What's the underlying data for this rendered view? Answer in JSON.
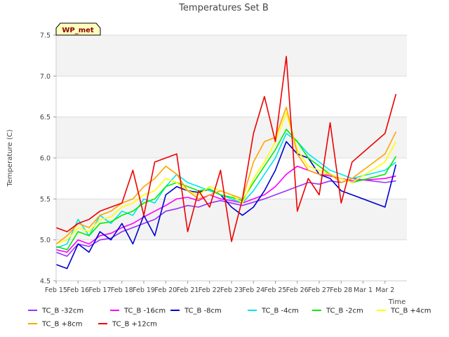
{
  "chart_data": {
    "type": "line",
    "title": "Temperatures Set B",
    "xlabel": "Time",
    "ylabel": "Temperature (C)",
    "ylim": [
      4.5,
      7.5
    ],
    "xlim": [
      "2024-02-15",
      "2024-03-02"
    ],
    "x_ticks": [
      "Feb 15",
      "Feb 16",
      "Feb 17",
      "Feb 18",
      "Feb 19",
      "Feb 20",
      "Feb 21",
      "Feb 22",
      "Feb 23",
      "Feb 24",
      "Feb 25",
      "Feb 26",
      "Feb 27",
      "Feb 28",
      "Mar 1",
      "Mar 2"
    ],
    "y_ticks": [
      "4.5",
      "5.0",
      "5.5",
      "6.0",
      "6.5",
      "7.0",
      "7.5"
    ],
    "grid": "horizontal bands",
    "legend_position": "bottom",
    "annotation": "WP_met",
    "x": [
      "2024-02-15",
      "2024-02-15T12:00",
      "2024-02-16",
      "2024-02-16T12:00",
      "2024-02-17",
      "2024-02-17T12:00",
      "2024-02-18",
      "2024-02-18T12:00",
      "2024-02-19",
      "2024-02-19T12:00",
      "2024-02-20",
      "2024-02-20T12:00",
      "2024-02-21",
      "2024-02-21T12:00",
      "2024-02-22",
      "2024-02-22T12:00",
      "2024-02-23",
      "2024-02-23T12:00",
      "2024-02-24",
      "2024-02-24T12:00",
      "2024-02-25",
      "2024-02-25T12:00",
      "2024-02-26",
      "2024-02-26T12:00",
      "2024-02-27",
      "2024-02-27T12:00",
      "2024-02-28",
      "2024-02-28T12:00",
      "2024-03-01",
      "2024-03-01T12:00"
    ],
    "series": [
      {
        "name": "TC_B -32cm",
        "color": "#9b30ff",
        "values": [
          4.85,
          4.8,
          4.95,
          4.92,
          5.0,
          5.02,
          5.1,
          5.15,
          5.2,
          5.25,
          5.35,
          5.38,
          5.42,
          5.4,
          5.45,
          5.48,
          5.45,
          5.42,
          5.46,
          5.5,
          5.55,
          5.6,
          5.65,
          5.7,
          5.68,
          5.72,
          5.7,
          5.75,
          5.7,
          5.72
        ]
      },
      {
        "name": "TC_B -16cm",
        "color": "#ff00ff",
        "values": [
          4.88,
          4.85,
          5.0,
          4.95,
          5.05,
          5.08,
          5.15,
          5.2,
          5.28,
          5.35,
          5.42,
          5.5,
          5.52,
          5.48,
          5.55,
          5.5,
          5.48,
          5.45,
          5.5,
          5.55,
          5.65,
          5.8,
          5.9,
          5.85,
          5.8,
          5.78,
          5.75,
          5.72,
          5.75,
          5.78
        ]
      },
      {
        "name": "TC_B -8cm",
        "color": "#0000cd",
        "values": [
          4.7,
          4.65,
          4.95,
          4.85,
          5.1,
          5.0,
          5.2,
          4.95,
          5.3,
          5.05,
          5.55,
          5.65,
          5.6,
          5.58,
          5.62,
          5.55,
          5.4,
          5.3,
          5.4,
          5.6,
          5.85,
          6.2,
          6.05,
          6.0,
          5.8,
          5.75,
          5.6,
          5.55,
          5.4,
          5.92
        ]
      },
      {
        "name": "TC_B -4cm",
        "color": "#00e5ee",
        "values": [
          4.9,
          4.95,
          5.25,
          5.05,
          5.3,
          5.2,
          5.35,
          5.3,
          5.5,
          5.45,
          5.65,
          5.8,
          5.7,
          5.65,
          5.6,
          5.55,
          5.5,
          5.45,
          5.6,
          5.8,
          6.0,
          6.3,
          6.2,
          6.05,
          5.95,
          5.85,
          5.8,
          5.75,
          5.85,
          5.95
        ]
      },
      {
        "name": "TC_B -2cm",
        "color": "#00ee00",
        "values": [
          4.92,
          4.88,
          5.1,
          5.05,
          5.2,
          5.22,
          5.3,
          5.35,
          5.45,
          5.5,
          5.65,
          5.7,
          5.65,
          5.6,
          5.62,
          5.55,
          5.52,
          5.48,
          5.7,
          5.9,
          6.1,
          6.35,
          6.2,
          6.0,
          5.9,
          5.8,
          5.75,
          5.7,
          5.8,
          6.02
        ]
      },
      {
        "name": "TC_B +4cm",
        "color": "#ffff00",
        "values": [
          4.95,
          5.0,
          5.15,
          5.1,
          5.25,
          5.28,
          5.4,
          5.45,
          5.55,
          5.6,
          5.75,
          5.7,
          5.6,
          5.55,
          5.65,
          5.6,
          5.55,
          5.45,
          5.75,
          5.95,
          6.2,
          6.55,
          6.1,
          5.9,
          5.85,
          5.8,
          5.75,
          5.7,
          5.95,
          6.2
        ]
      },
      {
        "name": "TC_B +8cm",
        "color": "#ffa500",
        "values": [
          4.95,
          5.05,
          5.2,
          5.15,
          5.3,
          5.35,
          5.45,
          5.5,
          5.65,
          5.75,
          5.9,
          5.8,
          5.6,
          5.5,
          5.55,
          5.6,
          5.55,
          5.5,
          5.95,
          6.2,
          6.25,
          6.62,
          6.05,
          5.85,
          5.8,
          5.8,
          5.7,
          5.75,
          6.05,
          6.32
        ]
      },
      {
        "name": "TC_B +12cm",
        "color": "#ee0000",
        "values": [
          5.15,
          5.1,
          5.2,
          5.25,
          5.35,
          5.4,
          5.45,
          5.85,
          5.3,
          5.95,
          6.0,
          6.05,
          5.1,
          5.6,
          5.4,
          5.85,
          4.98,
          5.5,
          6.3,
          6.75,
          6.2,
          7.24,
          5.35,
          5.75,
          5.55,
          6.43,
          5.45,
          5.95,
          6.3,
          6.78
        ]
      }
    ]
  }
}
